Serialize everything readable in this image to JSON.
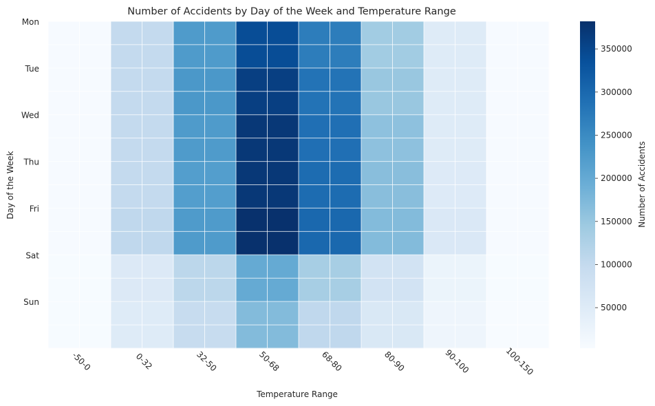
{
  "chart_data": {
    "type": "heatmap",
    "title": "Number of Accidents by Day of the Week and Temperature Range",
    "xlabel": "Temperature Range",
    "ylabel": "Day of the Week",
    "colorbar_label": "Number of Accidents",
    "x_categories": [
      "-50-0",
      "0-32",
      "32-50",
      "50-68",
      "68-80",
      "80-90",
      "90-100",
      "100-150"
    ],
    "y_categories": [
      "Mon",
      "Tue",
      "Wed",
      "Thu",
      "Fri",
      "Sat",
      "Sun"
    ],
    "values": [
      [
        5000,
        100000,
        225000,
        340000,
        270000,
        140000,
        50000,
        5000
      ],
      [
        5000,
        100000,
        230000,
        360000,
        285000,
        150000,
        50000,
        5000
      ],
      [
        5000,
        100000,
        225000,
        370000,
        290000,
        160000,
        50000,
        5000
      ],
      [
        5000,
        100000,
        220000,
        370000,
        295000,
        165000,
        52000,
        5000
      ],
      [
        5000,
        105000,
        225000,
        380000,
        300000,
        170000,
        58000,
        5000
      ],
      [
        4000,
        55000,
        110000,
        200000,
        135000,
        75000,
        25000,
        4000
      ],
      [
        4000,
        50000,
        95000,
        170000,
        105000,
        60000,
        20000,
        3000
      ]
    ],
    "color_range": [
      3000,
      382000
    ],
    "colorbar_ticks": [
      50000,
      100000,
      150000,
      200000,
      250000,
      300000,
      350000
    ],
    "colormap": "Blues",
    "grid": true
  }
}
